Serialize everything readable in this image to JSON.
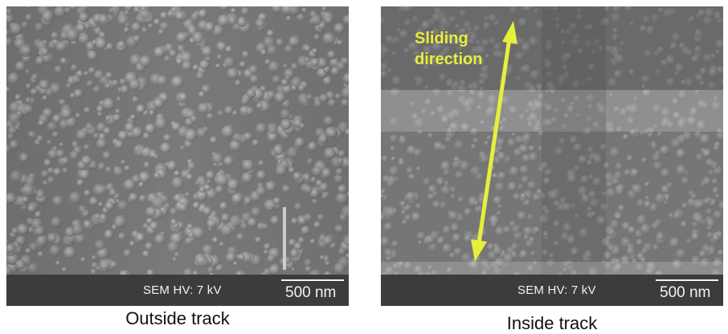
{
  "panels": [
    {
      "sem_label": "SEM HV: 7 kV",
      "scale_bar": "500 nm",
      "caption": "Outside track"
    },
    {
      "sem_label": "SEM HV: 7 kV",
      "scale_bar": "500 nm",
      "caption": "Inside track",
      "annotation": {
        "line1": "Sliding",
        "line2": "direction"
      }
    }
  ],
  "colors": {
    "arrow": "#e6ef3c",
    "info_bar": "#3c3c3c",
    "micrograph_base": "#7b7b7b"
  }
}
